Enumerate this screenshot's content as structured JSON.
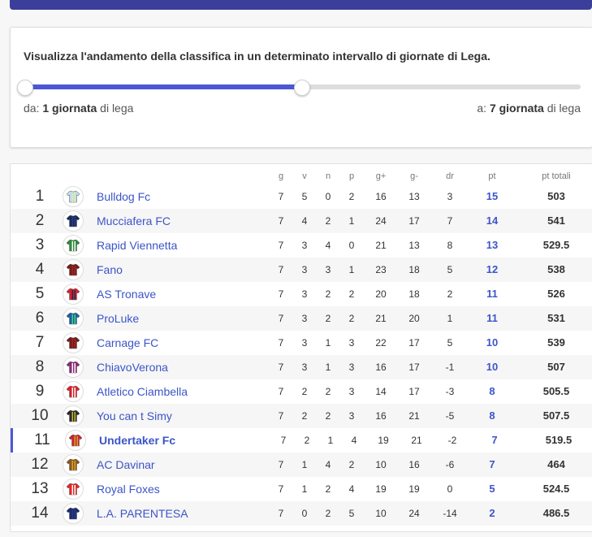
{
  "filter": {
    "title": "Visualizza l'andamento della classifica in un determinato intervallo di giornate di Lega.",
    "from_prefix": "da:",
    "from_value": "1 giornata",
    "from_suffix": "di lega",
    "to_prefix": "a:",
    "to_value": "7 giornata",
    "to_suffix": "di lega",
    "accent_color": "#4b57d6"
  },
  "table": {
    "headers": [
      "g",
      "v",
      "n",
      "p",
      "g+",
      "g-",
      "dr",
      "pt",
      "pt totali"
    ],
    "rows": [
      {
        "rank": "1",
        "team": "Bulldog Fc",
        "shirt": {
          "c1": "#b9dcf0",
          "c2": "#e8e8a0"
        },
        "g": "7",
        "v": "5",
        "n": "0",
        "p": "2",
        "gf": "16",
        "ga": "13",
        "dr": "3",
        "pt": "15",
        "pt_tot": "503"
      },
      {
        "rank": "2",
        "team": "Mucciafera FC",
        "shirt": {
          "c1": "#1a2a5c",
          "c2": "#2b3f80"
        },
        "g": "7",
        "v": "4",
        "n": "2",
        "p": "1",
        "gf": "24",
        "ga": "17",
        "dr": "7",
        "pt": "14",
        "pt_tot": "541"
      },
      {
        "rank": "3",
        "team": "Rapid Viennetta",
        "shirt": {
          "c1": "#2e8b3c",
          "c2": "#ffffff"
        },
        "g": "7",
        "v": "3",
        "n": "4",
        "p": "0",
        "gf": "21",
        "ga": "13",
        "dr": "8",
        "pt": "13",
        "pt_tot": "529.5"
      },
      {
        "rank": "4",
        "team": "Fano",
        "shirt": {
          "c1": "#7a1a1a",
          "c2": "#9a2a2a"
        },
        "g": "7",
        "v": "3",
        "n": "3",
        "p": "1",
        "gf": "23",
        "ga": "18",
        "dr": "5",
        "pt": "12",
        "pt_tot": "538"
      },
      {
        "rank": "5",
        "team": "AS Tronave",
        "shirt": {
          "c1": "#d8202a",
          "c2": "#1a2a5c"
        },
        "g": "7",
        "v": "3",
        "n": "2",
        "p": "2",
        "gf": "20",
        "ga": "18",
        "dr": "2",
        "pt": "11",
        "pt_tot": "526"
      },
      {
        "rank": "6",
        "team": "ProLuke",
        "shirt": {
          "c1": "#1e5aa8",
          "c2": "#3adf6a"
        },
        "g": "7",
        "v": "3",
        "n": "2",
        "p": "2",
        "gf": "21",
        "ga": "20",
        "dr": "1",
        "pt": "11",
        "pt_tot": "531"
      },
      {
        "rank": "7",
        "team": "Carnage FC",
        "shirt": {
          "c1": "#7a1a1a",
          "c2": "#9a2a2a"
        },
        "g": "7",
        "v": "3",
        "n": "1",
        "p": "3",
        "gf": "22",
        "ga": "17",
        "dr": "5",
        "pt": "10",
        "pt_tot": "539"
      },
      {
        "rank": "8",
        "team": "ChiavoVerona",
        "shirt": {
          "c1": "#8a2a7a",
          "c2": "#ffffff"
        },
        "g": "7",
        "v": "3",
        "n": "1",
        "p": "3",
        "gf": "16",
        "ga": "17",
        "dr": "-1",
        "pt": "10",
        "pt_tot": "507"
      },
      {
        "rank": "9",
        "team": "Atletico Ciambella",
        "shirt": {
          "c1": "#d8202a",
          "c2": "#ffffff"
        },
        "g": "7",
        "v": "2",
        "n": "2",
        "p": "3",
        "gf": "14",
        "ga": "17",
        "dr": "-3",
        "pt": "8",
        "pt_tot": "505.5"
      },
      {
        "rank": "10",
        "team": "You can t Simy",
        "shirt": {
          "c1": "#2a2a2a",
          "c2": "#c8b832"
        },
        "g": "7",
        "v": "2",
        "n": "2",
        "p": "3",
        "gf": "16",
        "ga": "21",
        "dr": "-5",
        "pt": "8",
        "pt_tot": "507.5"
      },
      {
        "rank": "11",
        "team": "Undertaker Fc",
        "shirt": {
          "c1": "#c8282a",
          "c2": "#d8a03a"
        },
        "g": "7",
        "v": "2",
        "n": "1",
        "p": "4",
        "gf": "19",
        "ga": "21",
        "dr": "-2",
        "pt": "7",
        "pt_tot": "519.5"
      },
      {
        "rank": "12",
        "team": "AC Davinar",
        "shirt": {
          "c1": "#8a5a1a",
          "c2": "#e0a030"
        },
        "g": "7",
        "v": "1",
        "n": "4",
        "p": "2",
        "gf": "10",
        "ga": "16",
        "dr": "-6",
        "pt": "7",
        "pt_tot": "464"
      },
      {
        "rank": "13",
        "team": "Royal Foxes",
        "shirt": {
          "c1": "#e0282a",
          "c2": "#ffffff"
        },
        "g": "7",
        "v": "1",
        "n": "2",
        "p": "4",
        "gf": "19",
        "ga": "19",
        "dr": "0",
        "pt": "5",
        "pt_tot": "524.5"
      },
      {
        "rank": "14",
        "team": "L.A. PARENTESA",
        "shirt": {
          "c1": "#1a2a6c",
          "c2": "#2a3a8c"
        },
        "g": "7",
        "v": "0",
        "n": "2",
        "p": "5",
        "gf": "10",
        "ga": "24",
        "dr": "-14",
        "pt": "2",
        "pt_tot": "486.5"
      }
    ]
  }
}
